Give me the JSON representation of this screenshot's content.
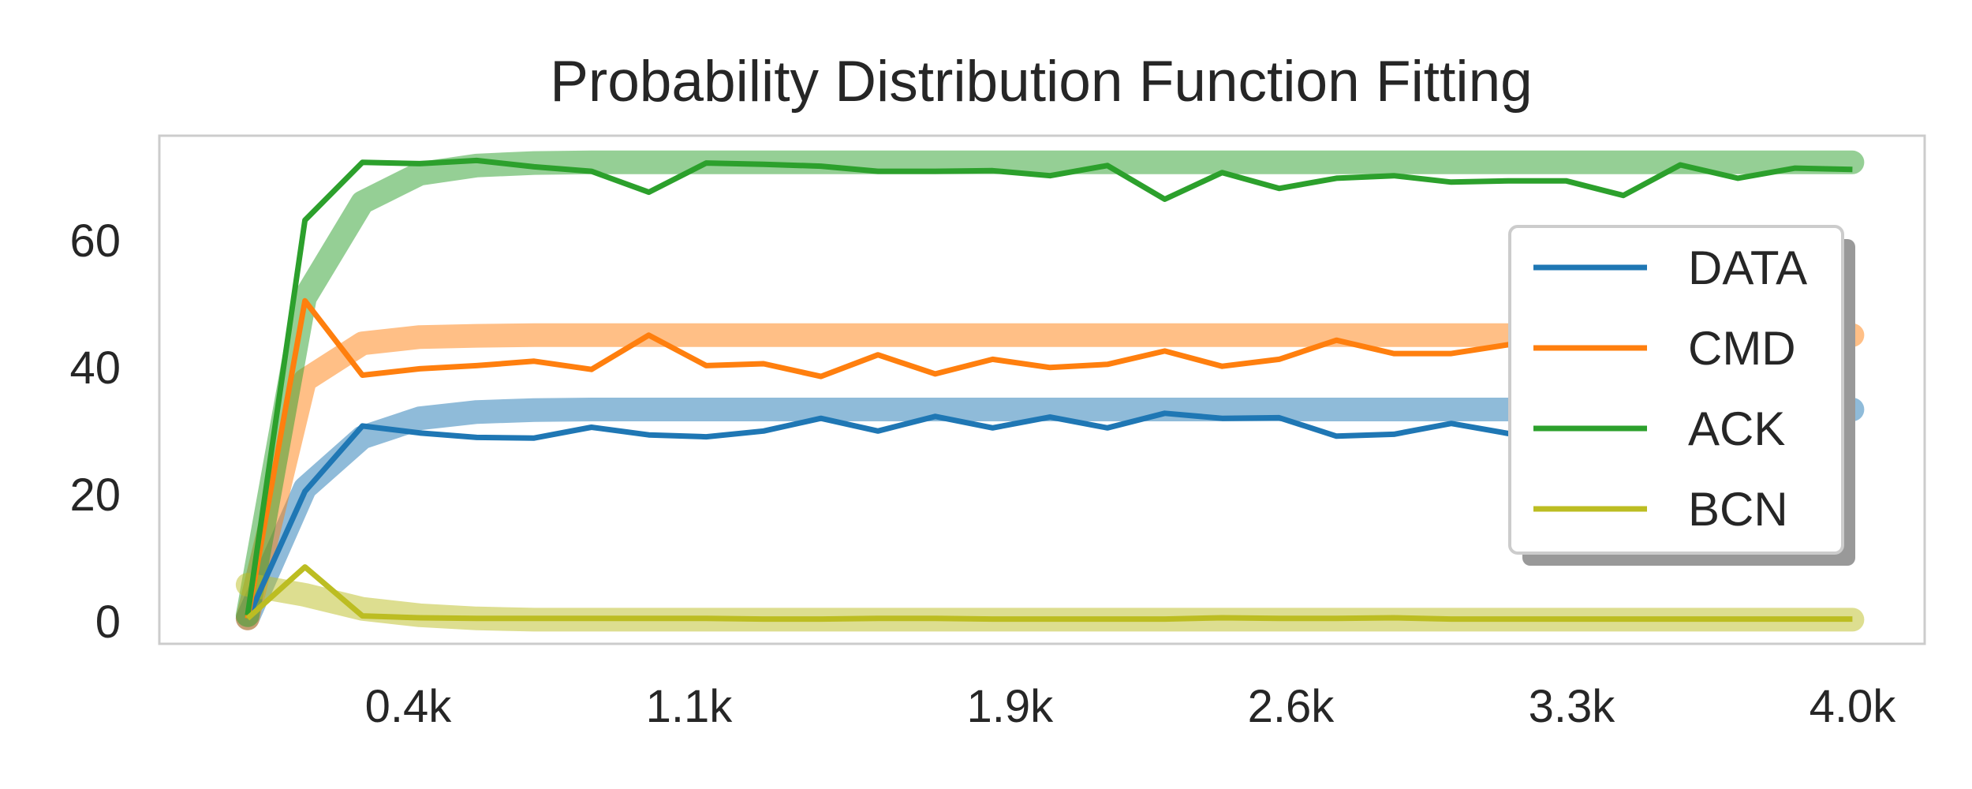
{
  "chart_data": {
    "type": "line",
    "title": "Probability Distribution Function Fitting",
    "xlabel": "",
    "ylabel": "",
    "xlim": [
      -220,
      4180
    ],
    "ylim": [
      -3.5,
      76.5
    ],
    "xticks": [
      400,
      1100,
      1900,
      2600,
      3300,
      4000
    ],
    "xtick_labels": [
      "0.4k",
      "1.1k",
      "1.9k",
      "2.6k",
      "3.3k",
      "4.0k"
    ],
    "yticks": [
      0,
      20,
      40,
      60
    ],
    "ytick_labels": [
      "0",
      "20",
      "40",
      "60"
    ],
    "grid": false,
    "legend_position": "right",
    "x": [
      0,
      143,
      286,
      429,
      571,
      714,
      857,
      1000,
      1143,
      1286,
      1429,
      1571,
      1714,
      1857,
      2000,
      2143,
      2286,
      2429,
      2571,
      2714,
      2857,
      3000,
      3143,
      3286,
      3429,
      3571,
      3714,
      3857,
      4000
    ],
    "series": [
      {
        "name": "DATA",
        "color": "#1f77b4",
        "values": [
          0.5,
          20.5,
          30.8,
          29.7,
          29.0,
          28.9,
          30.6,
          29.4,
          29.1,
          30.0,
          32.0,
          30.0,
          32.3,
          30.5,
          32.2,
          30.5,
          32.8,
          32.0,
          32.1,
          29.2,
          29.5,
          31.2,
          29.6,
          33.0,
          33.0,
          33.0,
          33.0,
          33.0,
          33.0
        ],
        "fit": [
          0.5,
          21.0,
          29.0,
          32.0,
          33.0,
          33.3,
          33.4,
          33.4,
          33.4,
          33.4,
          33.4,
          33.4,
          33.4,
          33.4,
          33.4,
          33.4,
          33.4,
          33.4,
          33.4,
          33.4,
          33.4,
          33.4,
          33.4,
          33.4,
          33.4,
          33.4,
          33.4,
          33.4,
          33.4
        ]
      },
      {
        "name": "CMD",
        "color": "#ff7f0e",
        "values": [
          0.5,
          50.5,
          38.8,
          39.8,
          40.3,
          41.0,
          39.7,
          45.1,
          40.3,
          40.6,
          38.6,
          42.0,
          39.0,
          41.3,
          40.0,
          40.5,
          42.6,
          40.2,
          41.3,
          44.3,
          42.2,
          42.2,
          43.6,
          40.5,
          45.2,
          45.2,
          45.2,
          45.2,
          45.2
        ],
        "fit": [
          0.5,
          38.0,
          43.8,
          44.8,
          45.0,
          45.1,
          45.1,
          45.1,
          45.1,
          45.1,
          45.1,
          45.1,
          45.1,
          45.1,
          45.1,
          45.1,
          45.1,
          45.1,
          45.1,
          45.1,
          45.1,
          45.1,
          45.1,
          45.1,
          45.1,
          45.1,
          45.1,
          45.1,
          45.1
        ]
      },
      {
        "name": "ACK",
        "color": "#2ca02c",
        "values": [
          1.0,
          63.2,
          72.3,
          72.1,
          72.6,
          71.6,
          70.9,
          67.6,
          72.2,
          72.0,
          71.7,
          70.9,
          70.9,
          71.0,
          70.2,
          71.8,
          66.5,
          70.7,
          68.2,
          69.8,
          70.2,
          69.2,
          69.4,
          69.4,
          67.1,
          71.9,
          69.8,
          71.4,
          71.2
        ],
        "fit": [
          1.0,
          51.0,
          66.0,
          70.5,
          71.8,
          72.2,
          72.3,
          72.3,
          72.3,
          72.3,
          72.3,
          72.3,
          72.3,
          72.3,
          72.3,
          72.3,
          72.3,
          72.3,
          72.3,
          72.3,
          72.3,
          72.3,
          72.3,
          72.3,
          72.3,
          72.3,
          72.3,
          72.3,
          72.3
        ]
      },
      {
        "name": "BCN",
        "color": "#bcbd22",
        "values": [
          0.5,
          8.6,
          0.9,
          0.6,
          0.5,
          0.5,
          0.5,
          0.5,
          0.5,
          0.4,
          0.4,
          0.5,
          0.5,
          0.4,
          0.4,
          0.4,
          0.4,
          0.6,
          0.5,
          0.5,
          0.6,
          0.4,
          0.4,
          0.4,
          0.4,
          0.4,
          0.4,
          0.4,
          0.4
        ],
        "fit": [
          5.8,
          4.2,
          2.0,
          1.0,
          0.5,
          0.3,
          0.3,
          0.3,
          0.3,
          0.3,
          0.3,
          0.3,
          0.3,
          0.3,
          0.3,
          0.3,
          0.3,
          0.3,
          0.3,
          0.3,
          0.3,
          0.3,
          0.3,
          0.3,
          0.3,
          0.3,
          0.3,
          0.3,
          0.3
        ]
      }
    ]
  }
}
